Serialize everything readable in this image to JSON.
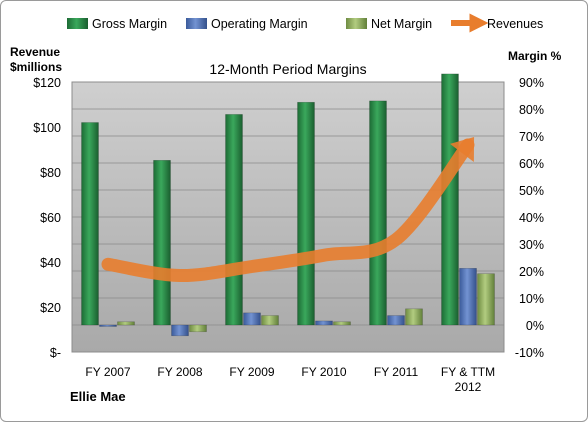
{
  "chart_data": {
    "type": "bar",
    "title": "12-Month Period Margins",
    "company": "Ellie Mae",
    "left_axis_title": [
      "Revenue",
      "$millions"
    ],
    "right_axis_title": "Margin %",
    "categories": [
      [
        "FY 2007"
      ],
      [
        "FY 2008"
      ],
      [
        "FY 2009"
      ],
      [
        "FY 2010"
      ],
      [
        "FY 2011"
      ],
      [
        "FY & TTM",
        "2012"
      ]
    ],
    "left_ticks": [
      "$-",
      "$20",
      "$40",
      "$60",
      "$80",
      "$100",
      "$120"
    ],
    "right_ticks": [
      "-10%",
      "0%",
      "10%",
      "20%",
      "30%",
      "40%",
      "50%",
      "60%",
      "70%",
      "80%",
      "90%"
    ],
    "left_range": [
      0,
      120
    ],
    "right_range": [
      -10,
      90
    ],
    "grid": true,
    "legend_position": "top",
    "series": [
      {
        "name": "Gross Margin",
        "type": "bar",
        "axis": "right",
        "color": "#2e8b4a",
        "values": [
          75,
          61,
          78,
          82.5,
          83,
          93
        ]
      },
      {
        "name": "Operating Margin",
        "type": "bar",
        "axis": "right",
        "color": "#4f72b8",
        "values": [
          0,
          -4,
          4.5,
          1.5,
          3.5,
          21
        ]
      },
      {
        "name": "Net Margin",
        "type": "bar",
        "axis": "right",
        "color": "#93b560",
        "values": [
          1.2,
          -2.5,
          3.5,
          1.2,
          6,
          19
        ]
      },
      {
        "name": "Revenues",
        "type": "line",
        "axis": "left",
        "color": "#e87d2d",
        "values": [
          39,
          34,
          38,
          43,
          50,
          92
        ]
      }
    ]
  }
}
